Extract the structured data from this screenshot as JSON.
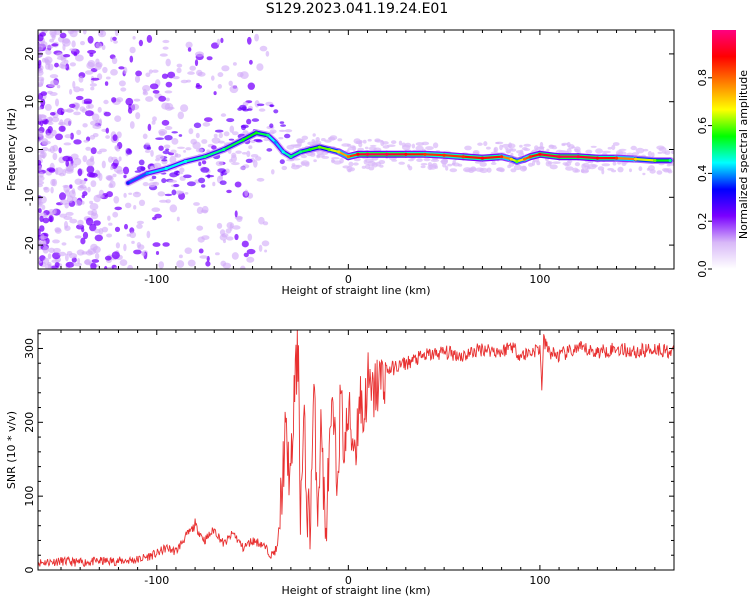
{
  "title": "S129.2023.041.19.24.E01",
  "chart_data": [
    {
      "type": "heatmap",
      "title": "",
      "xlabel": "Height of straight line (km)",
      "ylabel": "Frequency (Hz)",
      "xlim": [
        -162,
        170
      ],
      "ylim": [
        -25,
        25
      ],
      "xticks": [
        -100,
        0,
        100
      ],
      "yticks": [
        -20,
        -10,
        0,
        10,
        20
      ],
      "grid": false,
      "colorbar": {
        "label": "Normalized spectral amplitude",
        "range": [
          0.0,
          1.0
        ],
        "ticks": [
          0.0,
          0.2,
          0.4,
          0.6,
          0.8
        ],
        "colors": [
          "#ffffff",
          "#d8b8f8",
          "#7a00ff",
          "#0000ff",
          "#00ffff",
          "#00ff00",
          "#ffff00",
          "#ff8000",
          "#ff0000",
          "#ff0080"
        ]
      },
      "ridge": {
        "x": [
          -115,
          -105,
          -95,
          -85,
          -75,
          -65,
          -55,
          -48,
          -42,
          -38,
          -34,
          -30,
          -25,
          -20,
          -15,
          -10,
          -5,
          0,
          5,
          10,
          20,
          30,
          40,
          50,
          60,
          70,
          80,
          85,
          88,
          92,
          95,
          100,
          110,
          120,
          130,
          140,
          150,
          160,
          168
        ],
        "y": [
          -7,
          -5,
          -4,
          -2.5,
          -1.5,
          0,
          2,
          3.5,
          3,
          1.5,
          -0.5,
          -1.5,
          -0.5,
          0,
          0.5,
          0,
          -0.5,
          -1.5,
          -1,
          -1,
          -1,
          -1,
          -1,
          -1.2,
          -1.5,
          -1.8,
          -1.5,
          -2,
          -2.5,
          -2,
          -1.5,
          -1,
          -1.5,
          -1.5,
          -1.8,
          -1.8,
          -2,
          -2.3,
          -2.3
        ],
        "amplitude": [
          0.35,
          0.4,
          0.45,
          0.45,
          0.5,
          0.5,
          0.55,
          0.55,
          0.5,
          0.4,
          0.45,
          0.5,
          0.5,
          0.55,
          0.6,
          0.6,
          0.7,
          0.8,
          0.9,
          0.95,
          0.95,
          0.9,
          0.85,
          0.85,
          0.85,
          0.9,
          0.85,
          0.7,
          0.6,
          0.8,
          0.85,
          0.9,
          0.95,
          0.95,
          0.9,
          0.85,
          0.7,
          0.6,
          0.5
        ]
      }
    },
    {
      "type": "line",
      "title": "",
      "xlabel": "Height of straight line (km)",
      "ylabel": "SNR (10 * v/v)",
      "xlim": [
        -162,
        170
      ],
      "ylim": [
        0,
        325
      ],
      "xticks": [
        -100,
        0,
        100
      ],
      "yticks": [
        0,
        100,
        200,
        300
      ],
      "grid": false,
      "color": "#e83030",
      "series": [
        {
          "name": "",
          "x": [
            -162,
            -150,
            -140,
            -130,
            -120,
            -110,
            -100,
            -95,
            -90,
            -85,
            -80,
            -75,
            -70,
            -65,
            -60,
            -55,
            -50,
            -45,
            -40,
            -37,
            -35,
            -33,
            -30,
            -28,
            -26,
            -25,
            -23,
            -22,
            -20,
            -18,
            -16,
            -14,
            -12,
            -10,
            -8,
            -6,
            -4,
            -2,
            0,
            2,
            4,
            6,
            8,
            10,
            12,
            15,
            18,
            20,
            25,
            30,
            40,
            50,
            60,
            70,
            80,
            85,
            90,
            95,
            100,
            101,
            102,
            105,
            110,
            120,
            130,
            140,
            150,
            160,
            170
          ],
          "y": [
            10,
            12,
            10,
            12,
            12,
            14,
            22,
            30,
            25,
            45,
            60,
            40,
            55,
            35,
            50,
            30,
            40,
            35,
            20,
            30,
            100,
            180,
            120,
            250,
            300,
            80,
            200,
            100,
            60,
            240,
            90,
            200,
            40,
            150,
            210,
            120,
            230,
            160,
            210,
            180,
            170,
            240,
            200,
            260,
            230,
            250,
            260,
            270,
            275,
            280,
            290,
            295,
            290,
            300,
            295,
            305,
            290,
            295,
            300,
            250,
            310,
            295,
            290,
            300,
            295,
            300,
            295,
            300,
            295
          ]
        }
      ]
    }
  ]
}
